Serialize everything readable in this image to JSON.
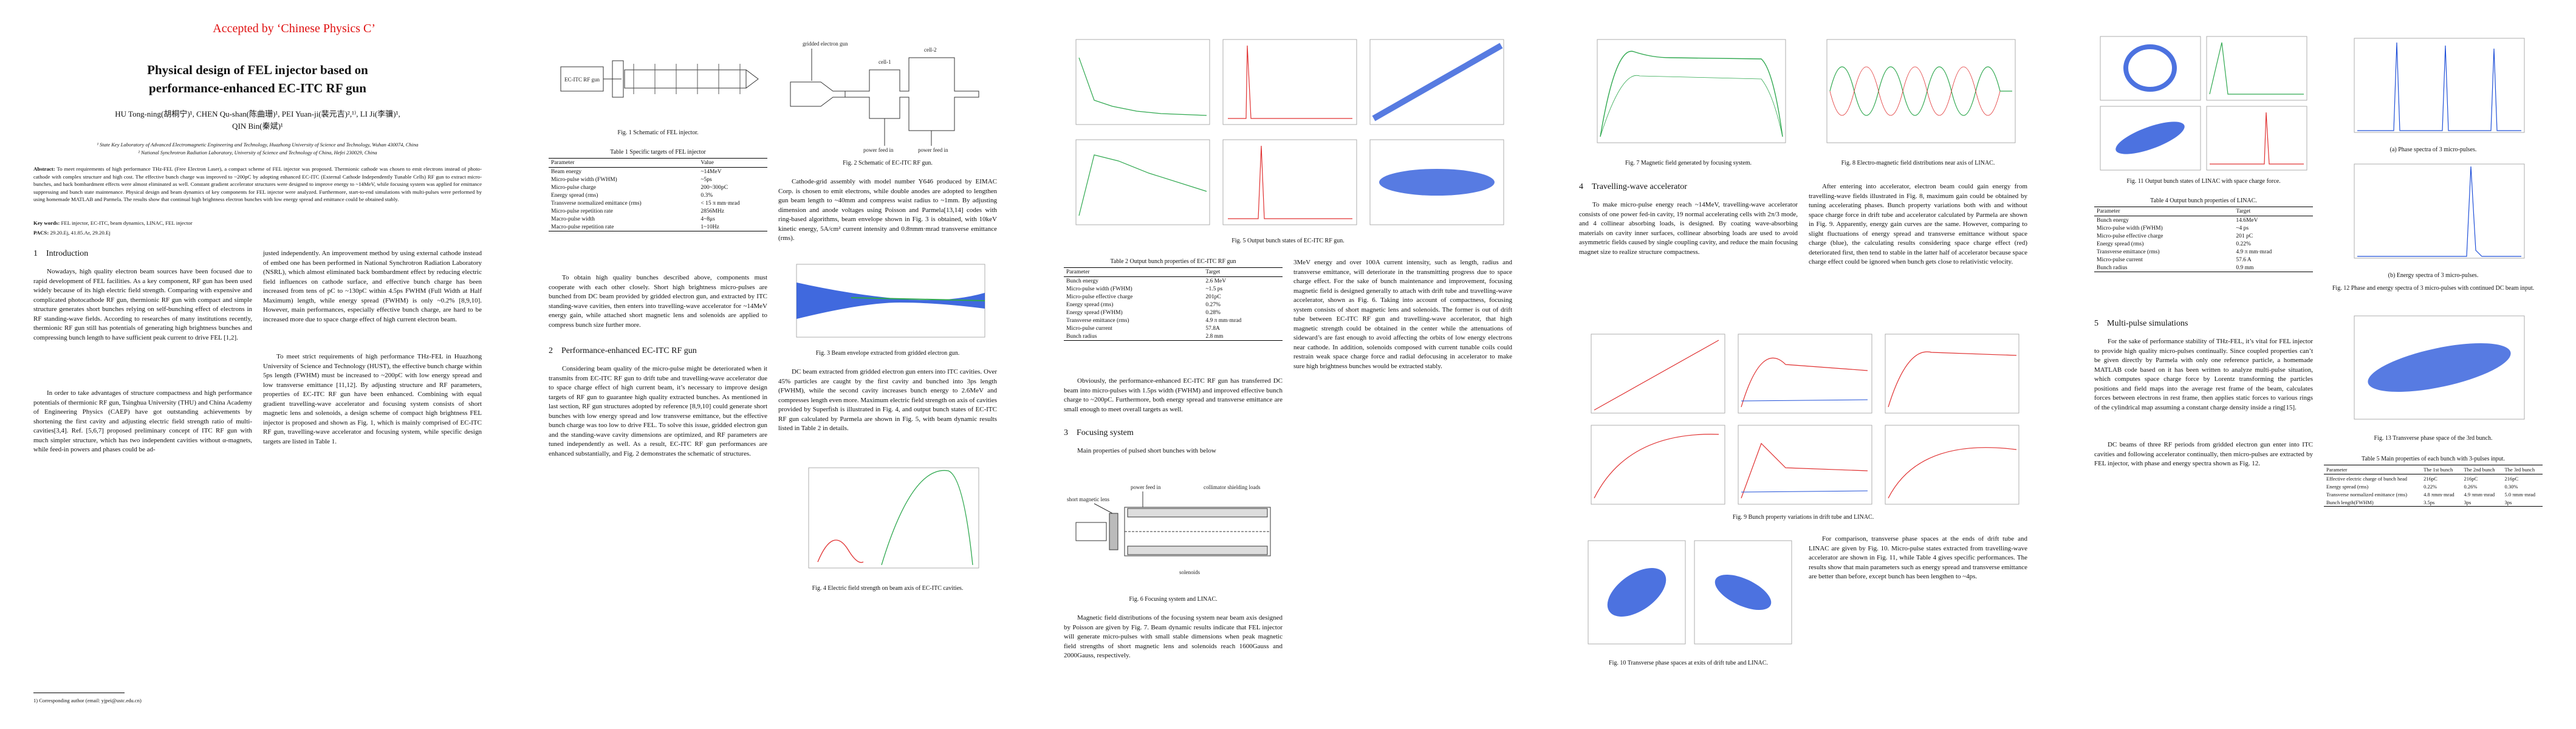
{
  "header": {
    "accepted": "Accepted by ‘Chinese Physics C’",
    "title": [
      "Physical design of FEL injector based on",
      "performance-enhanced EC-ITC RF gun"
    ],
    "authors": [
      "HU Tong-ning(胡桐宁)¹, CHEN Qu-shan(陈曲珊)¹, PEI Yuan-ji(裴元吉)²,¹⁾, LI Ji(李骥)¹,",
      "QIN Bin(秦斌)¹"
    ],
    "affiliations": [
      "¹ State Key Laboratory of Advanced Electromagnetic Engineering and Technology, Huazhong University of Science and Technology, Wuhan 430074, China",
      "² National Synchrotron Radiation Laboratory, University of Science and Technology of China, Hefei 230029, China"
    ]
  },
  "abstract": {
    "label": "Abstract:",
    "text": "To meet requirements of high performance THz-FEL (Free Electron Laser), a compact scheme of FEL injector was proposed. Thermionic cathode was chosen to emit electrons instead of photo-cathode with complex structure and high cost. The effective bunch charge was improved to ~200pC by adopting enhanced EC-ITC (External Cathode Independently Tunable Cells) RF gun to extract micro-bunches, and back bombardment effects were almost eliminated as well. Constant gradient accelerator structures were designed to improve energy to ~14MeV, while focusing system was applied for emittance suppressing and bunch state maintenance. Physical design and beam dynamics of key components for FEL injector were analyzed. Furthermore, start-to-end simulations with multi-pulses were performed by using homemade MATLAB and Parmela. The results show that continual high brightness electron bunches with low energy spread and emittance could be obtained stably."
  },
  "keywords": {
    "label": "Key words:",
    "text": "FEL injector, EC-ITC, beam dynamics, LINAC, FEL injector"
  },
  "pacs": {
    "label": "PACS:",
    "text": "29.20.Ej, 41.85.Ar, 29.20.Ej"
  },
  "footnote": "1) Corresponding author (email: yjpei@ustc.edu.cn)",
  "sections": [
    {
      "number": "1",
      "title": "Introduction",
      "paragraphs": [
        "Nowadays, high quality electron beam sources have been focused due to rapid development of FEL facilities. As a key component, RF gun has been used widely because of its high electric field strength. Comparing with expensive and complicated photocathode RF gun, thermionic RF gun with compact and simple structure generates short bunches relying on self-bunching effect of electrons in RF standing-wave fields. According to researches of many institutions recently, thermionic RF gun still has potentials of generating high brightness bunches and compressing bunch length to have sufficient peak current to drive FEL [1,2].",
        "In order to take advantages of structure compactness and high performance potentials of thermionic RF gun, Tsinghua University (THU) and China Academy of Engineering Physics (CAEP) have got outstanding achievements by shortening the first cavity and adjusting electric field strength ratio of multi-cavities[3,4]. Ref. [5,6,7] proposed preliminary concept of ITC RF gun with much simpler structure, which has two independent cavities without α-magnets, while feed-in powers and phases could be ad-",
        "justed independently. An improvement method by using external cathode instead of embed one has been performed in National Synchrotron Radiation Laboratory (NSRL), which almost eliminated back bombardment effect by reducing electric field influences on cathode surface, and effective bunch charge has been increased from tens of pC to ~130pC within 4.5ps FWHM (Full Width at Half Maximum) length, while energy spread (FWHM) is only ~0.2% [8,9,10]. However, main performances, especially effective bunch charge, are hard to be increased more due to space charge effect of high current electron beam.",
        "To meet strict requirements of high performance THz-FEL in Huazhong University of Science and Technology (HUST), the effective bunch charge within 5ps length (FWHM) must be increased to ~200pC with low energy spread and low transverse emittance [11,12]. By adjusting structure and RF parameters, properties of EC-ITC RF gun have been enhanced. Combining with equal gradient travelling-wave accelerator and focusing system consists of short magnetic lens and solenoids, a design scheme of compact high brightness FEL injector is proposed and shown as Fig. 1, which is mainly comprised of EC-ITC RF gun, travelling-wave accelerator and focusing system, while specific design targets are listed in Table 1.",
        "To obtain high quality bunches described above, components must cooperate with each other closely. Short high brightness micro-pulses are bunched from DC beam provided by gridded electron gun, and extracted by ITC standing-wave cavities, then enters into travelling-wave accelerator for ~14MeV energy gain, while attached short magnetic lens and solenoids are applied to compress bunch size further more."
      ]
    },
    {
      "number": "2",
      "title": "Performance-enhanced EC-ITC RF gun",
      "paragraphs": [
        "Considering beam quality of the micro-pulse might be deteriorated when it transmits from EC-ITC RF gun to drift tube and travelling-wave accelerator due to space charge effect of high current beam, it’s necessary to improve design targets of RF gun to guarantee high quality extracted bunches. As mentioned in last section, RF gun structures adopted by reference [8,9,10] could generate short bunches with low energy spread and low transverse emittance, but the effective bunch charge was too low to drive FEL. To solve this issue, gridded electron gun and the standing-wave cavity dimensions are optimized, and RF parameters are tuned independently as well. As a result, EC-ITC RF gun performances are enhanced substantially, and Fig. 2 demonstrates the schematic of structures.",
        "Cathode-grid assembly with model number Y646 produced by EIMAC Corp. is chosen to emit electrons, while double anodes are adopted to lengthen gun beam length to ~40mm and compress waist radius to ~1mm. By adjusting dimension and anode voltages using Poisson and Parmela[13,14] codes with ring-based algorithms, beam envelope shown in Fig. 3 is obtained, with 10keV kinetic energy, 5A/cm² current intensity and 0.8πmm·mrad transverse emittance (rms).",
        "DC beam extracted from gridded electron gun enters into ITC cavities. Over 45% particles are caught by the first cavity and bunched into 3ps length (FWHM), while the second cavity increases bunch energy to 2.6MeV and compresses length even more. Maximum electric field strength on axis of cavities provided by Superfish is illustrated in Fig. 4, and output bunch states of EC-ITC RF gun calculated by Parmela are shown in Fig. 5, with beam dynamic results listed in Table 2 in details.",
        "Obviously, the performance-enhanced EC-ITC RF gun has transferred DC beam into micro-pulses with 1.5ps width (FWHM) and improved effective bunch charge to ~200pC. Furthermore, both energy spread and transverse emittance are small enough to meet overall targets as well."
      ]
    },
    {
      "number": "3",
      "title": "Focusing system",
      "paragraphs": [
        "Main properties of pulsed short bunches with below",
        "3MeV energy and over 100A current intensity, such as length, radius and transverse emittance, will deteriorate in the transmitting progress due to space charge effect. For the sake of bunch maintenance and improvement, focusing magnetic field is designed generally to attach with drift tube and travelling-wave accelerator, shown as Fig. 6. Taking into account of compactness, focusing system consists of short magnetic lens and solenoids. The former is out of drift tube between EC-ITC RF gun and travelling-wave accelerator, that high magnetic strength could be obtained in the center while the attenuations of sideward’s are fast enough to avoid affecting the orbits of low energy electrons near cathode. In addition, solenoids composed with current tunable coils could restrain weak space charge force and radial defocusing in accelerator to make sure high brightness bunches would be extracted stably.",
        "Magnetic field distributions of the focusing system near beam axis designed by Poisson are given by Fig. 7. Beam dynamic results indicate that FEL injector will generate micro-pulses with small stable dimensions when peak magnetic field strengths of short magnetic lens and solenoids reach 1600Gauss and 2000Gauss, respectively."
      ]
    },
    {
      "number": "4",
      "title": "Travelling-wave accelerator",
      "paragraphs": [
        "To make micro-pulse energy reach ~14MeV, travelling-wave accelerator consists of one power fed-in cavity, 19 normal accelerating cells with 2π/3 mode, and 4 collinear absorbing loads, is designed. By coating wave-absorbing materials on cavity inner surfaces, collinear absorbing loads are used to avoid asymmetric fields caused by single coupling cavity, and reduce the main focusing magnet size to realize structure compactness.",
        "After entering into accelerator, electron beam could gain energy from travelling-wave fields illustrated in Fig. 8, maximum gain could be obtained by tuning accelerating phases. Bunch property variations both with and without space charge force in drift tube and accelerator calculated by Parmela are shown in Fig. 9. Apparently, energy gain curves are the same. However, comparing to slight fluctuations of energy spread and transverse emittance without space charge (blue), the calculating results considering space charge effect (red) deteriorated first, then tend to stable in the latter half of accelerator because space charge effect could be ignored when bunch gets close to relativistic velocity.",
        "For comparison, transverse phase spaces at the ends of drift tube and LINAC are given by Fig. 10. Micro-pulse states extracted from travelling-wave accelerator are shown in Fig. 11, while Table 4 gives specific performances. The results show that main parameters such as energy spread and transverse emittance are better than before, except bunch has been lengthen to ~4ps."
      ]
    },
    {
      "number": "5",
      "title": "Multi-pulse simulations",
      "paragraphs": [
        "For the sake of performance stability of THz-FEL, it’s vital for FEL injector to provide high quality micro-pulses continually. Since coupled properties can’t be given directly by Parmela with only one reference particle, a homemade MATLAB code based on it has been written to analyze multi-pulse situation, which computes space charge force by Lorentz transforming the particles positions and field maps into the average rest frame of the beam, calculates forces between electrons in rest frame, then applies static forces to various rings of the cylindrical map assuming a constant charge density inside a ring[15].",
        "DC beams of three RF periods from gridded electron gun enter into ITC cavities and following accelerator continually, then micro-pulses are extracted by FEL injector, with phase and energy spectra shown as Fig. 12."
      ]
    }
  ],
  "figures": [
    {
      "caption": "Fig. 1  Schematic of FEL injector.",
      "labels": [
        "EC-ITC RF gun"
      ]
    },
    {
      "caption": "Fig. 2  Schematic of EC-ITC RF gun.",
      "labels": [
        "gridded electron gun",
        "cell-1",
        "cell-2",
        "power feed in",
        "power feed in"
      ]
    },
    {
      "caption": "Fig. 3  Beam envelope extracted from gridded electron gun."
    },
    {
      "caption": "Fig. 4  Electric field strength on beam axis of EC-ITC cavities."
    },
    {
      "caption": "Fig. 5  Output bunch states of EC-ITC RF gun."
    },
    {
      "caption": "Fig. 6  Focusing system and LINAC.",
      "labels": [
        "short magnetic lens",
        "power feed in",
        "solenoids",
        "collimator shielding loads"
      ]
    },
    {
      "caption": "Fig. 7  Magnetic field generated by focusing system."
    },
    {
      "caption": "Fig. 8  Electro-magnetic field distributions near axis of LINAC."
    },
    {
      "caption": "Fig. 9  Bunch property variations in drift tube and LINAC."
    },
    {
      "caption": "Fig. 10  Transverse phase spaces at exits of drift tube and LINAC."
    },
    {
      "caption": "Fig. 11  Output bunch states of LINAC with space charge force."
    },
    {
      "caption": "Fig. 12  Phase and energy spectra of 3 micro-pulses with continued DC beam input.",
      "subcaptions": [
        "(a) Phase spectra of 3 micro-pulses.",
        "(b) Energy spectra of 3 micro-pulses."
      ]
    },
    {
      "caption": "Fig. 13  Transverse phase space of the 3rd bunch."
    }
  ],
  "tables": [
    {
      "caption": "Table 1   Specific targets of FEL injector",
      "header": [
        "Parameter",
        "Value"
      ],
      "rows": [
        [
          "Beam energy",
          "~14MeV"
        ],
        [
          "Micro-pulse width (FWHM)",
          "~5ps"
        ],
        [
          "Micro-pulse charge",
          "200~300pC"
        ],
        [
          "Energy spread (rms)",
          "0.3%"
        ],
        [
          "Transverse normalized emittance (rms)",
          "< 15 π mm·mrad"
        ],
        [
          "Micro-pulse repetition rate",
          "2856MHz"
        ],
        [
          "Macro-pulse width",
          "4~8μs"
        ],
        [
          "Macro-pulse repetition rate",
          "1~10Hz"
        ]
      ]
    },
    {
      "caption": "Table 2   Output bunch properties of EC-ITC RF gun",
      "header": [
        "Parameter",
        "Target"
      ],
      "rows": [
        [
          "Bunch energy",
          "2.6 MeV"
        ],
        [
          "Micro-pulse width (FWHM)",
          "~1.5 ps"
        ],
        [
          "Micro-pulse effective charge",
          "201pC"
        ],
        [
          "Energy spread (rms)",
          "0.27%"
        ],
        [
          "Energy spread (FWHM)",
          "0.28%"
        ],
        [
          "Transverse emittance (rms)",
          "4.9 π mm·mrad"
        ],
        [
          "Micro-pulse current",
          "57.8A"
        ],
        [
          "Bunch radius",
          "2.8 mm"
        ]
      ]
    },
    {
      "caption": "Table 4   Output bunch properties of LINAC.",
      "header": [
        "Parameter",
        "Target"
      ],
      "rows": [
        [
          "Bunch energy",
          "14.6MeV"
        ],
        [
          "Micro-pulse width (FWHM)",
          "~4 ps"
        ],
        [
          "Micro-pulse effective charge",
          "201 pC"
        ],
        [
          "Energy spread (rms)",
          "0.22%"
        ],
        [
          "Transverse emittance (rms)",
          "4.9 π mm·mrad"
        ],
        [
          "Micro-pulse current",
          "57.6 A"
        ],
        [
          "Bunch radius",
          "0.9 mm"
        ]
      ]
    },
    {
      "caption": "Table 5   Main properties of each bunch with 3-pulses input.",
      "header": [
        "Parameter",
        "The 1st bunch",
        "The 2nd bunch",
        "The 3rd bunch"
      ],
      "rows": [
        [
          "Effective electric charge of bunch head",
          "216pC",
          "216pC",
          "216pC"
        ],
        [
          "Energy spread (rms)",
          "0.22%",
          "0.26%",
          "0.30%"
        ],
        [
          "Transverse normalized emittance (rms)",
          "4.8 πmm·mrad",
          "4.9 πmm·mrad",
          "5.0 πmm·mrad"
        ],
        [
          "Bunch length(FWHM)",
          "3.5ps",
          "3ps",
          "3ps"
        ]
      ]
    }
  ]
}
